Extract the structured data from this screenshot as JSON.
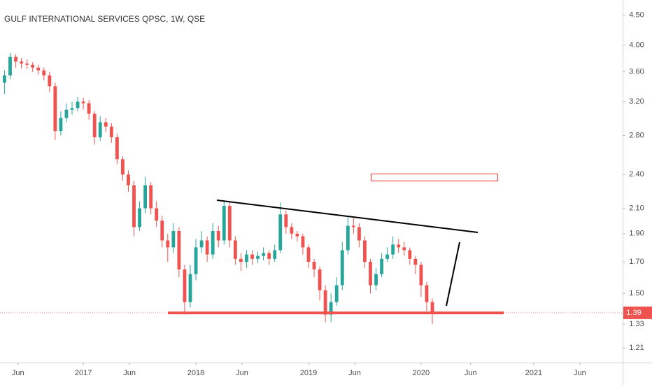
{
  "chart_data": {
    "type": "candlestick",
    "title": "GULF INTERNATIONAL SERVICES QPSC, 1W, QSE",
    "log_scale": true,
    "up_color": "#26a69a",
    "down_color": "#ef5350",
    "xlim": [
      2016.26,
      2021.79
    ],
    "xticks": [
      {
        "value": 2016.42,
        "label": "Jun"
      },
      {
        "value": 2017,
        "label": "2017"
      },
      {
        "value": 2017.41,
        "label": "Jun"
      },
      {
        "value": 2018,
        "label": "2018"
      },
      {
        "value": 2018.41,
        "label": "Jun"
      },
      {
        "value": 2019,
        "label": "2019"
      },
      {
        "value": 2019.41,
        "label": "Jun"
      },
      {
        "value": 2020,
        "label": "2020"
      },
      {
        "value": 2020.44,
        "label": "Jun"
      },
      {
        "value": 2021,
        "label": "2021"
      },
      {
        "value": 2021.41,
        "label": "Jun"
      }
    ],
    "ylim": [
      1.142,
      4.78
    ],
    "yticks": [
      {
        "value": 1.21,
        "label": "1.21"
      },
      {
        "value": 1.33,
        "label": "1.33"
      },
      {
        "value": 1.5,
        "label": "1.50"
      },
      {
        "value": 1.7,
        "label": "1.70"
      },
      {
        "value": 1.9,
        "label": "1.90"
      },
      {
        "value": 2.1,
        "label": "2.10"
      },
      {
        "value": 2.4,
        "label": "2.40"
      },
      {
        "value": 2.8,
        "label": "2.80"
      },
      {
        "value": 3.2,
        "label": "3.20"
      },
      {
        "value": 3.6,
        "label": "3.60"
      },
      {
        "value": 4.0,
        "label": "4.00"
      },
      {
        "value": 4.5,
        "label": "4.50"
      }
    ],
    "last_price": 1.39,
    "x": [
      2016.3,
      2016.35,
      2016.4,
      2016.45,
      2016.5,
      2016.55,
      2016.6,
      2016.65,
      2016.7,
      2016.75,
      2016.8,
      2016.85,
      2016.9,
      2016.95,
      2017.0,
      2017.05,
      2017.1,
      2017.15,
      2017.2,
      2017.25,
      2017.3,
      2017.35,
      2017.4,
      2017.45,
      2017.5,
      2017.55,
      2017.6,
      2017.65,
      2017.7,
      2017.75,
      2017.8,
      2017.85,
      2017.9,
      2017.95,
      2018.0,
      2018.05,
      2018.1,
      2018.15,
      2018.2,
      2018.25,
      2018.3,
      2018.35,
      2018.4,
      2018.45,
      2018.5,
      2018.55,
      2018.6,
      2018.65,
      2018.7,
      2018.75,
      2018.8,
      2018.85,
      2018.9,
      2018.95,
      2019.0,
      2019.05,
      2019.1,
      2019.15,
      2019.2,
      2019.25,
      2019.3,
      2019.35,
      2019.4,
      2019.45,
      2019.5,
      2019.55,
      2019.6,
      2019.65,
      2019.7,
      2019.75,
      2019.8,
      2019.85,
      2019.9,
      2019.95,
      2020.0,
      2020.05,
      2020.1
    ],
    "open": [
      3.45,
      3.55,
      3.82,
      3.75,
      3.72,
      3.7,
      3.66,
      3.62,
      3.55,
      3.4,
      2.85,
      3.0,
      3.1,
      3.12,
      3.2,
      3.18,
      3.05,
      2.78,
      2.95,
      2.9,
      2.78,
      2.55,
      2.4,
      2.3,
      1.95,
      2.1,
      2.3,
      2.1,
      2.0,
      1.85,
      1.8,
      1.92,
      1.65,
      1.45,
      1.62,
      1.8,
      1.85,
      1.75,
      1.92,
      1.85,
      2.12,
      1.85,
      1.72,
      1.7,
      1.75,
      1.72,
      1.74,
      1.76,
      1.72,
      1.78,
      2.05,
      1.95,
      1.9,
      1.88,
      1.8,
      1.7,
      1.65,
      1.52,
      1.38,
      1.45,
      1.55,
      1.78,
      1.96,
      1.95,
      1.85,
      1.7,
      1.55,
      1.62,
      1.72,
      1.75,
      1.82,
      1.8,
      1.78,
      1.72,
      1.68,
      1.55,
      1.45
    ],
    "high": [
      3.62,
      3.88,
      3.86,
      3.8,
      3.78,
      3.74,
      3.7,
      3.66,
      3.6,
      3.45,
      3.08,
      3.18,
      3.2,
      3.26,
      3.25,
      3.22,
      3.08,
      3.02,
      3.0,
      2.94,
      2.82,
      2.58,
      2.44,
      2.34,
      2.16,
      2.38,
      2.33,
      2.16,
      2.04,
      1.9,
      1.98,
      1.95,
      1.68,
      1.68,
      1.86,
      1.92,
      1.88,
      1.98,
      1.96,
      2.17,
      2.16,
      1.88,
      1.76,
      1.78,
      1.78,
      1.77,
      1.8,
      1.78,
      1.82,
      2.15,
      2.08,
      1.98,
      1.92,
      1.9,
      1.82,
      1.72,
      1.67,
      1.55,
      1.5,
      1.6,
      1.84,
      2.04,
      2.02,
      1.98,
      1.88,
      1.72,
      1.66,
      1.76,
      1.8,
      1.88,
      1.86,
      1.84,
      1.8,
      1.74,
      1.7,
      1.57,
      1.47
    ],
    "low": [
      3.3,
      3.5,
      3.66,
      3.65,
      3.64,
      3.6,
      3.56,
      3.48,
      3.32,
      2.75,
      2.8,
      2.95,
      3.04,
      3.08,
      3.1,
      2.98,
      2.7,
      2.74,
      2.84,
      2.72,
      2.5,
      2.34,
      2.24,
      1.88,
      1.92,
      2.06,
      2.05,
      1.95,
      1.8,
      1.7,
      1.76,
      1.6,
      1.38,
      1.42,
      1.58,
      1.76,
      1.7,
      1.72,
      1.8,
      1.82,
      1.8,
      1.68,
      1.64,
      1.66,
      1.68,
      1.69,
      1.71,
      1.68,
      1.7,
      1.76,
      1.9,
      1.86,
      1.84,
      1.75,
      1.66,
      1.6,
      1.46,
      1.34,
      1.34,
      1.43,
      1.52,
      1.75,
      1.9,
      1.8,
      1.66,
      1.5,
      1.52,
      1.6,
      1.7,
      1.72,
      1.76,
      1.74,
      1.68,
      1.62,
      1.48,
      1.4,
      1.33
    ],
    "close": [
      3.55,
      3.82,
      3.75,
      3.72,
      3.7,
      3.66,
      3.62,
      3.55,
      3.4,
      2.85,
      3.0,
      3.1,
      3.12,
      3.2,
      3.18,
      3.05,
      2.78,
      2.95,
      2.9,
      2.78,
      2.55,
      2.4,
      2.3,
      1.95,
      2.1,
      2.3,
      2.1,
      2.0,
      1.85,
      1.8,
      1.92,
      1.65,
      1.45,
      1.62,
      1.8,
      1.85,
      1.75,
      1.92,
      1.85,
      2.12,
      1.85,
      1.72,
      1.7,
      1.75,
      1.72,
      1.74,
      1.76,
      1.72,
      1.78,
      2.05,
      1.95,
      1.9,
      1.88,
      1.8,
      1.7,
      1.65,
      1.52,
      1.38,
      1.45,
      1.55,
      1.78,
      1.96,
      1.95,
      1.85,
      1.7,
      1.55,
      1.62,
      1.72,
      1.75,
      1.82,
      1.8,
      1.78,
      1.72,
      1.68,
      1.55,
      1.45,
      1.39
    ]
  }
}
